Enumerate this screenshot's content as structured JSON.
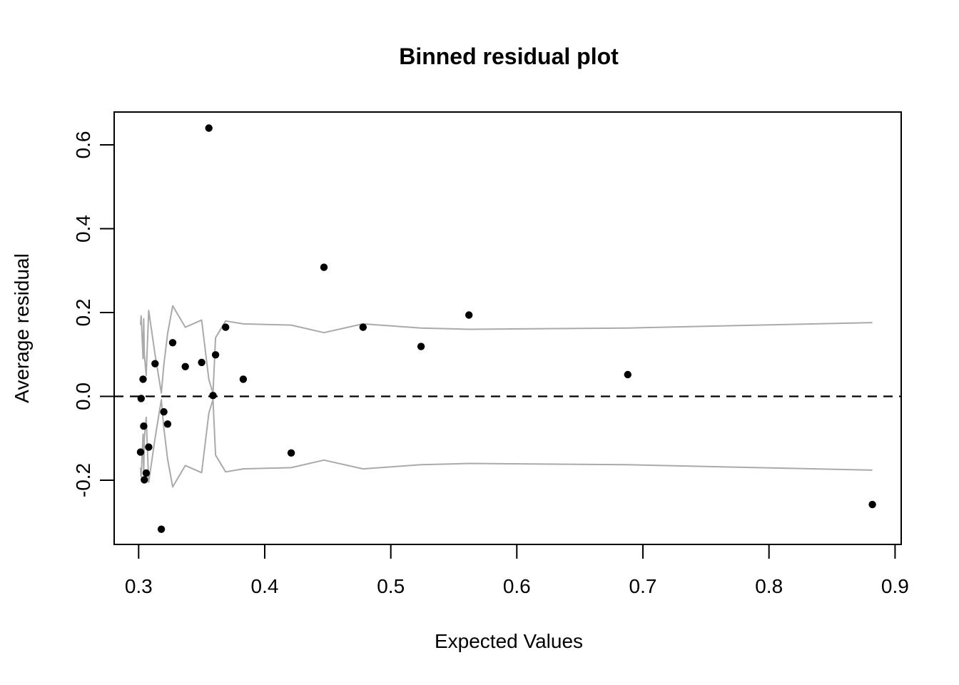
{
  "figure": {
    "title": "Binned residual plot",
    "xlabel": "Expected Values",
    "ylabel": "Average residual"
  },
  "chart_data": {
    "type": "scatter",
    "title": "Binned residual plot",
    "xlabel": "Expected Values",
    "ylabel": "Average residual",
    "xlim": [
      0.2806,
      0.9049
    ],
    "ylim": [
      -0.353,
      0.678
    ],
    "x_ticks": [
      0.3,
      0.4,
      0.5,
      0.6,
      0.7,
      0.8,
      0.9
    ],
    "x_tick_labels": [
      "0.3",
      "0.4",
      "0.5",
      "0.6",
      "0.7",
      "0.8",
      "0.9"
    ],
    "y_ticks": [
      -0.2,
      0.0,
      0.2,
      0.4,
      0.6
    ],
    "y_tick_labels": [
      "-0.2",
      "0.0",
      "0.2",
      "0.4",
      "0.6"
    ],
    "grid": false,
    "legend": false,
    "zero_line": {
      "y": 0.0,
      "style": "dashed",
      "color": "#000000"
    },
    "point_color": "#000000",
    "band_color": "#aaaaaa",
    "bands_note": "gray lines are plus/minus 2 standard-error limits per bin (se2); upper line = +se2, lower line = -se2",
    "bins": [
      {
        "x": 0.3015,
        "avg_residual": -0.133,
        "se2": 0.17
      },
      {
        "x": 0.302,
        "avg_residual": -0.005,
        "se2": 0.192
      },
      {
        "x": 0.3035,
        "avg_residual": 0.041,
        "se2": 0.09
      },
      {
        "x": 0.304,
        "avg_residual": -0.071,
        "se2": 0.185
      },
      {
        "x": 0.3045,
        "avg_residual": -0.199,
        "se2": 0.1
      },
      {
        "x": 0.306,
        "avg_residual": -0.183,
        "se2": 0.05
      },
      {
        "x": 0.308,
        "avg_residual": -0.121,
        "se2": 0.205
      },
      {
        "x": 0.313,
        "avg_residual": 0.078,
        "se2": 0.1
      },
      {
        "x": 0.318,
        "avg_residual": -0.317,
        "se2": 0.008
      },
      {
        "x": 0.32,
        "avg_residual": -0.037,
        "se2": 0.075
      },
      {
        "x": 0.323,
        "avg_residual": -0.066,
        "se2": 0.15
      },
      {
        "x": 0.327,
        "avg_residual": 0.128,
        "se2": 0.216
      },
      {
        "x": 0.337,
        "avg_residual": 0.071,
        "se2": 0.165
      },
      {
        "x": 0.35,
        "avg_residual": 0.081,
        "se2": 0.182
      },
      {
        "x": 0.3557,
        "avg_residual": 0.64,
        "se2": 0.04
      },
      {
        "x": 0.359,
        "avg_residual": 0.002,
        "se2": 0.008
      },
      {
        "x": 0.361,
        "avg_residual": 0.099,
        "se2": 0.14
      },
      {
        "x": 0.369,
        "avg_residual": 0.165,
        "se2": 0.18
      },
      {
        "x": 0.383,
        "avg_residual": 0.041,
        "se2": 0.173
      },
      {
        "x": 0.421,
        "avg_residual": -0.135,
        "se2": 0.17
      },
      {
        "x": 0.447,
        "avg_residual": 0.308,
        "se2": 0.152
      },
      {
        "x": 0.478,
        "avg_residual": 0.165,
        "se2": 0.173
      },
      {
        "x": 0.524,
        "avg_residual": 0.119,
        "se2": 0.163
      },
      {
        "x": 0.562,
        "avg_residual": 0.194,
        "se2": 0.16
      },
      {
        "x": 0.688,
        "avg_residual": 0.052,
        "se2": 0.163
      },
      {
        "x": 0.882,
        "avg_residual": -0.258,
        "se2": 0.176
      }
    ]
  }
}
